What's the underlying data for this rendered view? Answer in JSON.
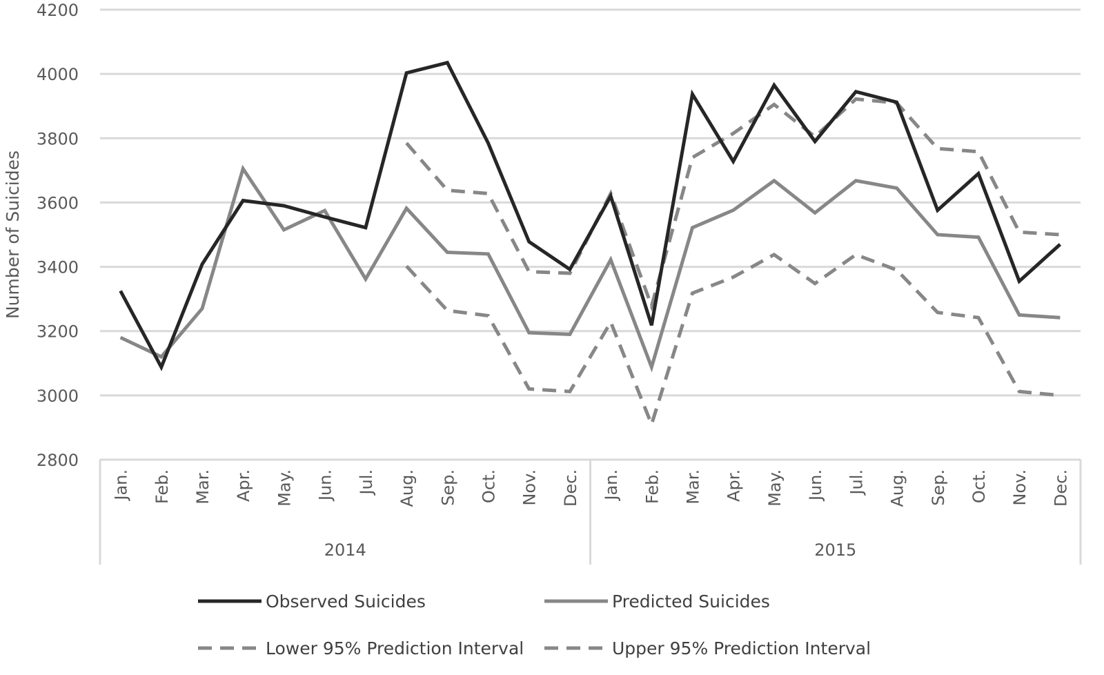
{
  "chart_data": {
    "type": "line",
    "title": "",
    "ylabel": "Number of Suicides",
    "xlabel": "",
    "ylim": [
      2800,
      4200
    ],
    "yticks": [
      2800,
      3000,
      3200,
      3400,
      3600,
      3800,
      4000,
      4200
    ],
    "grid": "horizontal",
    "legend_position": "bottom",
    "groups": [
      {
        "label": "2014",
        "categories": [
          "Jan.",
          "Feb.",
          "Mar.",
          "Apr.",
          "May.",
          "Jun.",
          "Jul.",
          "Aug.",
          "Sep.",
          "Oct.",
          "Nov.",
          "Dec."
        ]
      },
      {
        "label": "2015",
        "categories": [
          "Jan.",
          "Feb.",
          "Mar.",
          "Apr.",
          "May.",
          "Jun.",
          "Jul.",
          "Aug.",
          "Sep.",
          "Oct.",
          "Nov.",
          "Dec."
        ]
      }
    ],
    "series": [
      {
        "name": "Observed Suicides",
        "color": "#262626",
        "dash": "solid",
        "values": [
          3325,
          3088,
          3408,
          3606,
          3590,
          3555,
          3522,
          4003,
          4035,
          3785,
          3478,
          3392,
          3620,
          3218,
          3937,
          3728,
          3965,
          3790,
          3945,
          3912,
          3576,
          3690,
          3355,
          3470
        ]
      },
      {
        "name": "Predicted Suicides",
        "color": "#878787",
        "dash": "solid",
        "values": [
          3180,
          3120,
          3270,
          3705,
          3515,
          3575,
          3362,
          3582,
          3445,
          3440,
          3195,
          3190,
          3422,
          3088,
          3522,
          3576,
          3668,
          3568,
          3668,
          3645,
          3500,
          3492,
          3250,
          3242
        ]
      },
      {
        "name": "Lower 95% Prediction Interval",
        "color": "#878787",
        "dash": "dashed",
        "values": [
          null,
          null,
          null,
          null,
          null,
          null,
          null,
          3402,
          3264,
          3248,
          3020,
          3012,
          3228,
          2910,
          3318,
          3368,
          3438,
          3348,
          3438,
          3390,
          3258,
          3242,
          3012,
          3000
        ]
      },
      {
        "name": "Upper 95% Prediction Interval",
        "color": "#878787",
        "dash": "dashed",
        "values": [
          null,
          null,
          null,
          null,
          null,
          null,
          null,
          3785,
          3638,
          3628,
          3385,
          3380,
          3628,
          3278,
          3740,
          3815,
          3905,
          3805,
          3922,
          3910,
          3768,
          3758,
          3508,
          3500
        ]
      }
    ]
  }
}
